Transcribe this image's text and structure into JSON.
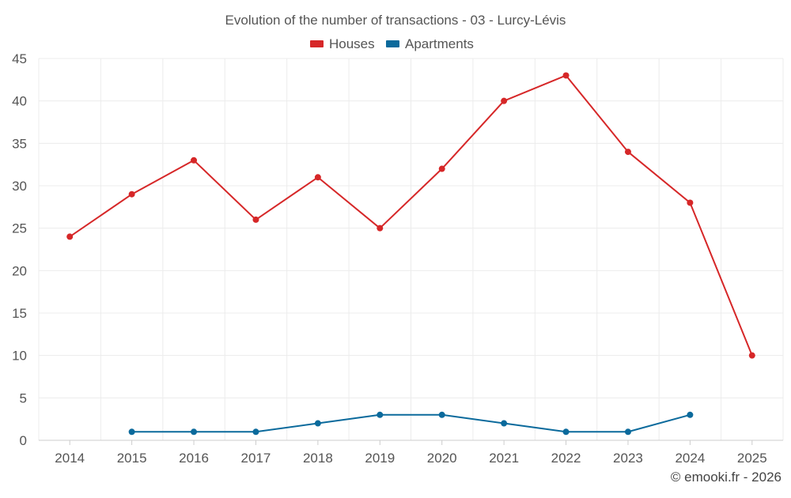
{
  "chart_data": {
    "type": "line",
    "title": "Evolution of the number of transactions - 03 - Lurcy-Lévis",
    "xlabel": "",
    "ylabel": "",
    "categories": [
      "2014",
      "2015",
      "2016",
      "2017",
      "2018",
      "2019",
      "2020",
      "2021",
      "2022",
      "2023",
      "2024",
      "2025"
    ],
    "ylim": [
      0,
      45
    ],
    "yticks": [
      0,
      5,
      10,
      15,
      20,
      25,
      30,
      35,
      40,
      45
    ],
    "grid": true,
    "legend_position": "top-center",
    "series": [
      {
        "name": "Houses",
        "color": "#d62728",
        "values": [
          24,
          29,
          33,
          26,
          31,
          25,
          32,
          40,
          43,
          34,
          28,
          10
        ]
      },
      {
        "name": "Apartments",
        "color": "#0b6a9c",
        "values": [
          null,
          1,
          1,
          1,
          2,
          3,
          3,
          2,
          1,
          1,
          3,
          null
        ]
      }
    ]
  },
  "credit": "© emooki.fr - 2026"
}
